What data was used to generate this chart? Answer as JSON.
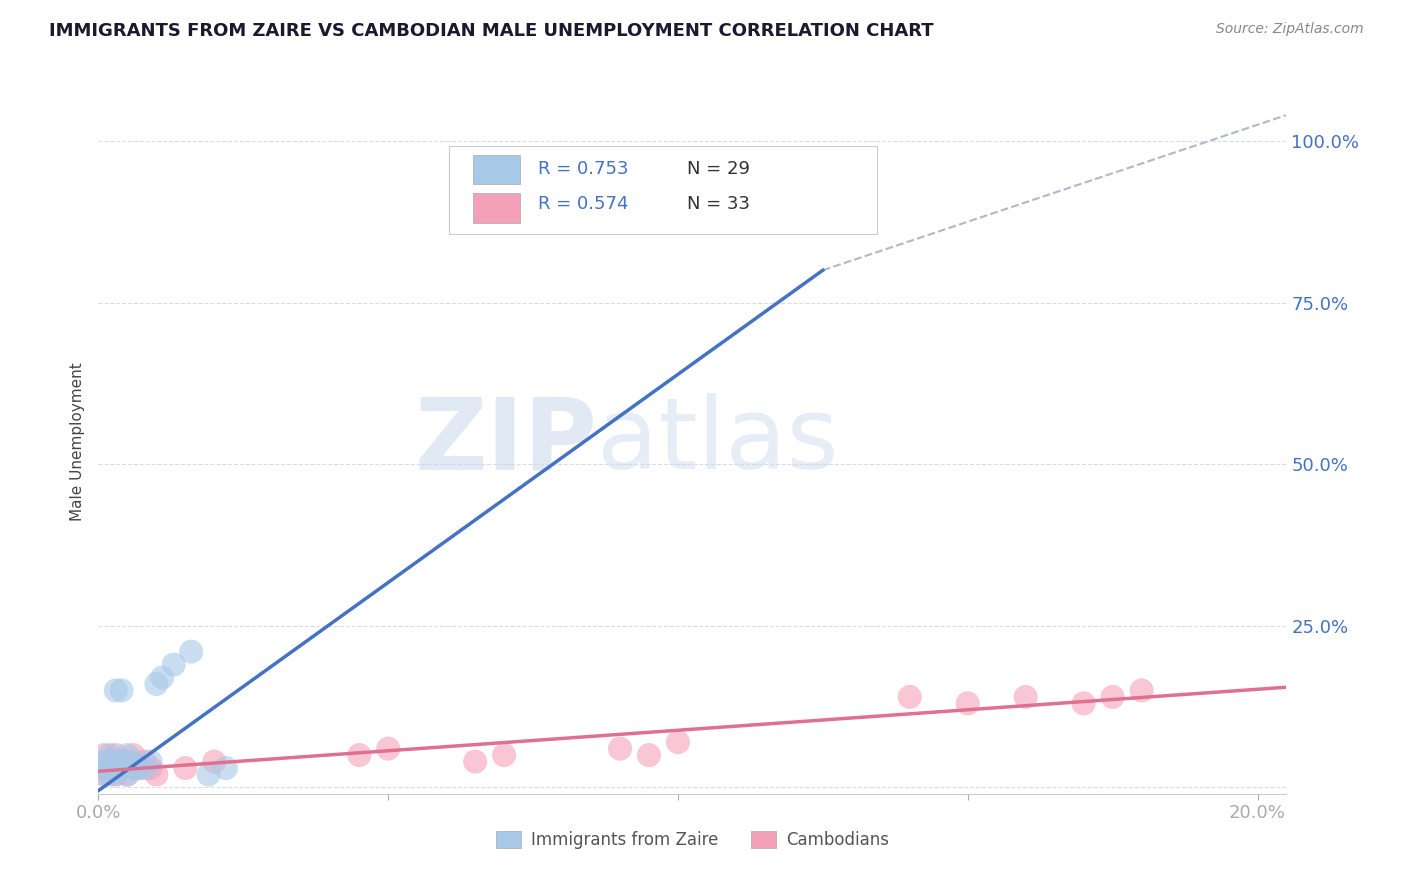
{
  "title": "IMMIGRANTS FROM ZAIRE VS CAMBODIAN MALE UNEMPLOYMENT CORRELATION CHART",
  "source_text": "Source: ZipAtlas.com",
  "ylabel": "Male Unemployment",
  "xlim": [
    0.0,
    0.205
  ],
  "ylim": [
    -0.01,
    1.08
  ],
  "xtick_positions": [
    0.0,
    0.05,
    0.1,
    0.15,
    0.2
  ],
  "xtick_labels": [
    "0.0%",
    "",
    "",
    "",
    "20.0%"
  ],
  "ytick_values": [
    0.0,
    0.25,
    0.5,
    0.75,
    1.0
  ],
  "ytick_labels": [
    "",
    "25.0%",
    "50.0%",
    "75.0%",
    "100.0%"
  ],
  "watermark_zip": "ZIP",
  "watermark_atlas": "atlas",
  "legend_line1": "R = 0.753   N = 29",
  "legend_line2": "R = 0.574   N = 33",
  "zaire_scatter_color": "#a8c8e8",
  "zaire_line_color": "#4472c4",
  "camb_scatter_color": "#f4a0b8",
  "camb_line_color": "#e07090",
  "dashed_line_color": "#b0b8c8",
  "grid_color": "#d8dce8",
  "background_color": "#ffffff",
  "title_color": "#1a1a2e",
  "source_color": "#888888",
  "ylabel_color": "#444444",
  "tick_color": "#4472c4",
  "legend_text_color": "#4472c4",
  "legend_n_color": "#333333",
  "bottom_legend_color": "#555555",
  "zaire_scatter_x": [
    0.001,
    0.001,
    0.001,
    0.002,
    0.002,
    0.002,
    0.002,
    0.003,
    0.003,
    0.003,
    0.003,
    0.004,
    0.004,
    0.004,
    0.005,
    0.005,
    0.005,
    0.005,
    0.006,
    0.006,
    0.007,
    0.008,
    0.009,
    0.01,
    0.011,
    0.013,
    0.016,
    0.019,
    0.022
  ],
  "zaire_scatter_y": [
    0.02,
    0.03,
    0.04,
    0.02,
    0.03,
    0.04,
    0.05,
    0.02,
    0.03,
    0.04,
    0.15,
    0.03,
    0.04,
    0.15,
    0.02,
    0.03,
    0.04,
    0.05,
    0.03,
    0.04,
    0.03,
    0.03,
    0.04,
    0.16,
    0.17,
    0.19,
    0.21,
    0.02,
    0.03
  ],
  "camb_scatter_x": [
    0.001,
    0.001,
    0.001,
    0.002,
    0.002,
    0.003,
    0.003,
    0.003,
    0.004,
    0.004,
    0.005,
    0.005,
    0.006,
    0.006,
    0.007,
    0.008,
    0.009,
    0.01,
    0.015,
    0.02,
    0.045,
    0.05,
    0.065,
    0.07,
    0.09,
    0.095,
    0.1,
    0.14,
    0.15,
    0.16,
    0.17,
    0.175,
    0.18
  ],
  "camb_scatter_y": [
    0.02,
    0.03,
    0.05,
    0.03,
    0.04,
    0.02,
    0.03,
    0.05,
    0.03,
    0.04,
    0.02,
    0.04,
    0.03,
    0.05,
    0.03,
    0.04,
    0.03,
    0.02,
    0.03,
    0.04,
    0.05,
    0.06,
    0.04,
    0.05,
    0.06,
    0.05,
    0.07,
    0.14,
    0.13,
    0.14,
    0.13,
    0.14,
    0.15
  ],
  "zaire_line_x0": 0.0,
  "zaire_line_y0": -0.005,
  "zaire_line_x1": 0.125,
  "zaire_line_y1": 0.8,
  "dash_line_x0": 0.125,
  "dash_line_y0": 0.8,
  "dash_line_x1": 0.205,
  "dash_line_y1": 1.04,
  "camb_line_x0": 0.0,
  "camb_line_y0": 0.025,
  "camb_line_x1": 0.205,
  "camb_line_y1": 0.155
}
